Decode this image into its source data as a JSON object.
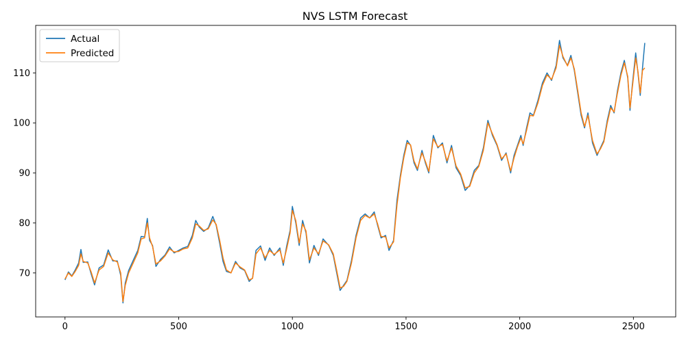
{
  "chart_data": {
    "type": "line",
    "title": "NVS LSTM Forecast",
    "xlabel": "",
    "ylabel": "",
    "xlim": [
      -129,
      2686
    ],
    "ylim": [
      61.2,
      119.5
    ],
    "xticks": [
      0,
      500,
      1000,
      1500,
      2000,
      2500
    ],
    "yticks": [
      70,
      80,
      90,
      100,
      110
    ],
    "grid": false,
    "legend_position": "upper-left",
    "series": [
      {
        "name": "Actual",
        "color": "#1f77b4",
        "points": [
          [
            0,
            68.6
          ],
          [
            15,
            70.2
          ],
          [
            30,
            69.4
          ],
          [
            45,
            70.6
          ],
          [
            60,
            72.0
          ],
          [
            70,
            74.7
          ],
          [
            80,
            72.1
          ],
          [
            100,
            72.2
          ],
          [
            115,
            69.8
          ],
          [
            130,
            67.6
          ],
          [
            150,
            71.0
          ],
          [
            170,
            71.6
          ],
          [
            190,
            74.6
          ],
          [
            210,
            72.4
          ],
          [
            230,
            72.4
          ],
          [
            245,
            69.5
          ],
          [
            255,
            64.0
          ],
          [
            265,
            68.0
          ],
          [
            280,
            70.5
          ],
          [
            300,
            72.5
          ],
          [
            320,
            74.5
          ],
          [
            335,
            77.3
          ],
          [
            350,
            77.2
          ],
          [
            362,
            80.9
          ],
          [
            372,
            76.5
          ],
          [
            385,
            75.5
          ],
          [
            400,
            71.3
          ],
          [
            420,
            72.7
          ],
          [
            440,
            73.6
          ],
          [
            460,
            75.2
          ],
          [
            480,
            74.0
          ],
          [
            500,
            74.5
          ],
          [
            520,
            75.0
          ],
          [
            540,
            75.3
          ],
          [
            560,
            77.5
          ],
          [
            575,
            80.5
          ],
          [
            590,
            79.2
          ],
          [
            610,
            78.3
          ],
          [
            630,
            79.0
          ],
          [
            650,
            81.3
          ],
          [
            665,
            79.5
          ],
          [
            680,
            76.0
          ],
          [
            695,
            72.3
          ],
          [
            710,
            70.3
          ],
          [
            730,
            70.0
          ],
          [
            750,
            72.3
          ],
          [
            770,
            71.0
          ],
          [
            790,
            70.5
          ],
          [
            810,
            68.3
          ],
          [
            825,
            69.0
          ],
          [
            840,
            74.5
          ],
          [
            860,
            75.4
          ],
          [
            880,
            72.5
          ],
          [
            900,
            75.0
          ],
          [
            920,
            73.5
          ],
          [
            945,
            75.0
          ],
          [
            960,
            71.5
          ],
          [
            975,
            75.4
          ],
          [
            990,
            78.5
          ],
          [
            1000,
            83.3
          ],
          [
            1015,
            80.0
          ],
          [
            1030,
            75.5
          ],
          [
            1045,
            80.5
          ],
          [
            1060,
            78.0
          ],
          [
            1075,
            72.0
          ],
          [
            1095,
            75.5
          ],
          [
            1115,
            73.5
          ],
          [
            1135,
            76.8
          ],
          [
            1160,
            75.5
          ],
          [
            1180,
            73.5
          ],
          [
            1195,
            70.0
          ],
          [
            1210,
            66.5
          ],
          [
            1225,
            67.5
          ],
          [
            1240,
            68.5
          ],
          [
            1260,
            72.5
          ],
          [
            1280,
            77.5
          ],
          [
            1300,
            81.0
          ],
          [
            1320,
            81.8
          ],
          [
            1340,
            81.0
          ],
          [
            1360,
            82.2
          ],
          [
            1375,
            79.5
          ],
          [
            1390,
            77.0
          ],
          [
            1410,
            77.5
          ],
          [
            1425,
            74.5
          ],
          [
            1445,
            76.5
          ],
          [
            1460,
            84.5
          ],
          [
            1475,
            89.5
          ],
          [
            1490,
            93.5
          ],
          [
            1505,
            96.5
          ],
          [
            1520,
            95.5
          ],
          [
            1535,
            92.0
          ],
          [
            1550,
            90.5
          ],
          [
            1570,
            94.5
          ],
          [
            1585,
            92.0
          ],
          [
            1600,
            90.0
          ],
          [
            1620,
            97.5
          ],
          [
            1640,
            95.0
          ],
          [
            1660,
            96.0
          ],
          [
            1680,
            92.0
          ],
          [
            1700,
            95.5
          ],
          [
            1720,
            91.0
          ],
          [
            1740,
            89.5
          ],
          [
            1760,
            86.5
          ],
          [
            1780,
            87.5
          ],
          [
            1800,
            90.5
          ],
          [
            1820,
            91.5
          ],
          [
            1840,
            95.0
          ],
          [
            1860,
            100.5
          ],
          [
            1880,
            97.5
          ],
          [
            1900,
            95.5
          ],
          [
            1920,
            92.5
          ],
          [
            1940,
            94.0
          ],
          [
            1960,
            90.0
          ],
          [
            1975,
            93.5
          ],
          [
            1990,
            95.5
          ],
          [
            2005,
            97.5
          ],
          [
            2015,
            95.5
          ],
          [
            2030,
            99.0
          ],
          [
            2045,
            102.0
          ],
          [
            2060,
            101.5
          ],
          [
            2080,
            104.5
          ],
          [
            2100,
            108.0
          ],
          [
            2120,
            110.0
          ],
          [
            2140,
            108.5
          ],
          [
            2160,
            111.5
          ],
          [
            2175,
            116.5
          ],
          [
            2190,
            113.0
          ],
          [
            2210,
            111.5
          ],
          [
            2225,
            113.5
          ],
          [
            2240,
            110.5
          ],
          [
            2255,
            106.0
          ],
          [
            2270,
            101.5
          ],
          [
            2285,
            99.0
          ],
          [
            2300,
            102.0
          ],
          [
            2320,
            96.0
          ],
          [
            2340,
            93.5
          ],
          [
            2355,
            95.0
          ],
          [
            2370,
            96.5
          ],
          [
            2385,
            100.5
          ],
          [
            2400,
            103.5
          ],
          [
            2415,
            102.0
          ],
          [
            2430,
            106.5
          ],
          [
            2445,
            110.0
          ],
          [
            2460,
            112.5
          ],
          [
            2475,
            109.0
          ],
          [
            2485,
            102.5
          ],
          [
            2495,
            107.5
          ],
          [
            2510,
            114.0
          ],
          [
            2520,
            110.0
          ],
          [
            2530,
            105.5
          ],
          [
            2540,
            111.0
          ],
          [
            2550,
            116.0
          ]
        ]
      },
      {
        "name": "Predicted",
        "color": "#ff7f0e",
        "points": [
          [
            0,
            68.8
          ],
          [
            15,
            70.0
          ],
          [
            30,
            69.3
          ],
          [
            45,
            70.3
          ],
          [
            60,
            71.5
          ],
          [
            70,
            73.8
          ],
          [
            80,
            72.3
          ],
          [
            100,
            72.0
          ],
          [
            115,
            70.2
          ],
          [
            130,
            68.0
          ],
          [
            150,
            70.6
          ],
          [
            170,
            71.3
          ],
          [
            190,
            74.0
          ],
          [
            210,
            72.6
          ],
          [
            230,
            72.2
          ],
          [
            245,
            70.0
          ],
          [
            255,
            64.3
          ],
          [
            265,
            67.5
          ],
          [
            280,
            70.0
          ],
          [
            300,
            72.0
          ],
          [
            320,
            74.0
          ],
          [
            335,
            76.8
          ],
          [
            350,
            77.0
          ],
          [
            362,
            80.0
          ],
          [
            372,
            77.0
          ],
          [
            385,
            75.3
          ],
          [
            400,
            71.8
          ],
          [
            420,
            72.4
          ],
          [
            440,
            73.4
          ],
          [
            460,
            74.8
          ],
          [
            480,
            74.2
          ],
          [
            500,
            74.3
          ],
          [
            520,
            74.8
          ],
          [
            540,
            75.0
          ],
          [
            560,
            77.0
          ],
          [
            575,
            79.8
          ],
          [
            590,
            79.4
          ],
          [
            610,
            78.5
          ],
          [
            630,
            78.8
          ],
          [
            650,
            80.6
          ],
          [
            665,
            79.7
          ],
          [
            680,
            76.6
          ],
          [
            695,
            73.0
          ],
          [
            710,
            70.6
          ],
          [
            730,
            70.0
          ],
          [
            750,
            72.0
          ],
          [
            770,
            71.2
          ],
          [
            790,
            70.6
          ],
          [
            810,
            68.6
          ],
          [
            825,
            68.9
          ],
          [
            840,
            73.8
          ],
          [
            860,
            75.0
          ],
          [
            880,
            73.0
          ],
          [
            900,
            74.5
          ],
          [
            920,
            73.7
          ],
          [
            945,
            74.6
          ],
          [
            960,
            72.0
          ],
          [
            975,
            74.8
          ],
          [
            990,
            78.0
          ],
          [
            1000,
            82.5
          ],
          [
            1015,
            80.5
          ],
          [
            1030,
            76.0
          ],
          [
            1045,
            79.8
          ],
          [
            1060,
            78.4
          ],
          [
            1075,
            72.6
          ],
          [
            1095,
            75.0
          ],
          [
            1115,
            73.8
          ],
          [
            1135,
            76.4
          ],
          [
            1160,
            75.6
          ],
          [
            1180,
            73.8
          ],
          [
            1195,
            70.5
          ],
          [
            1210,
            67.0
          ],
          [
            1225,
            67.3
          ],
          [
            1240,
            68.3
          ],
          [
            1260,
            72.0
          ],
          [
            1280,
            77.0
          ],
          [
            1300,
            80.5
          ],
          [
            1320,
            81.5
          ],
          [
            1340,
            81.0
          ],
          [
            1360,
            81.8
          ],
          [
            1375,
            79.8
          ],
          [
            1390,
            77.3
          ],
          [
            1410,
            77.2
          ],
          [
            1425,
            75.0
          ],
          [
            1445,
            76.2
          ],
          [
            1460,
            83.5
          ],
          [
            1475,
            89.0
          ],
          [
            1490,
            93.0
          ],
          [
            1505,
            96.0
          ],
          [
            1520,
            95.6
          ],
          [
            1535,
            92.4
          ],
          [
            1550,
            90.8
          ],
          [
            1570,
            94.0
          ],
          [
            1585,
            92.3
          ],
          [
            1600,
            90.3
          ],
          [
            1620,
            96.8
          ],
          [
            1640,
            95.2
          ],
          [
            1660,
            95.7
          ],
          [
            1680,
            92.4
          ],
          [
            1700,
            95.0
          ],
          [
            1720,
            91.4
          ],
          [
            1740,
            89.8
          ],
          [
            1760,
            87.0
          ],
          [
            1780,
            87.3
          ],
          [
            1800,
            90.0
          ],
          [
            1820,
            91.3
          ],
          [
            1840,
            94.5
          ],
          [
            1860,
            100.0
          ],
          [
            1880,
            97.8
          ],
          [
            1900,
            95.7
          ],
          [
            1920,
            92.8
          ],
          [
            1940,
            93.8
          ],
          [
            1960,
            90.4
          ],
          [
            1975,
            93.0
          ],
          [
            1990,
            95.2
          ],
          [
            2005,
            97.0
          ],
          [
            2015,
            95.8
          ],
          [
            2030,
            98.5
          ],
          [
            2045,
            101.5
          ],
          [
            2060,
            101.4
          ],
          [
            2080,
            104.0
          ],
          [
            2100,
            107.5
          ],
          [
            2120,
            109.6
          ],
          [
            2140,
            108.7
          ],
          [
            2160,
            111.0
          ],
          [
            2175,
            115.5
          ],
          [
            2190,
            113.3
          ],
          [
            2210,
            111.4
          ],
          [
            2225,
            113.0
          ],
          [
            2240,
            110.8
          ],
          [
            2255,
            106.5
          ],
          [
            2270,
            102.0
          ],
          [
            2285,
            99.3
          ],
          [
            2300,
            101.5
          ],
          [
            2320,
            96.5
          ],
          [
            2340,
            93.8
          ],
          [
            2355,
            94.8
          ],
          [
            2370,
            96.2
          ],
          [
            2385,
            100.0
          ],
          [
            2400,
            103.0
          ],
          [
            2415,
            102.2
          ],
          [
            2430,
            106.0
          ],
          [
            2445,
            109.5
          ],
          [
            2460,
            112.0
          ],
          [
            2475,
            109.3
          ],
          [
            2485,
            103.0
          ],
          [
            2495,
            107.0
          ],
          [
            2510,
            113.0
          ],
          [
            2520,
            110.3
          ],
          [
            2530,
            106.0
          ],
          [
            2540,
            110.5
          ],
          [
            2550,
            111.0
          ]
        ]
      }
    ]
  }
}
